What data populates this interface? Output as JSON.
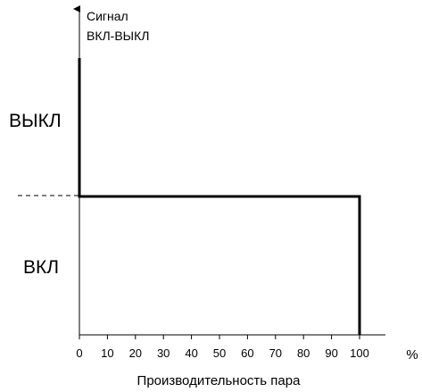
{
  "chart_data": {
    "type": "line",
    "ylabel_lines": [
      "Сигнал",
      "ВКЛ-ВЫКЛ"
    ],
    "xlabel": "Производительность пара",
    "x_unit": "%",
    "x_ticks": [
      0,
      10,
      20,
      30,
      40,
      50,
      60,
      70,
      80,
      90,
      100
    ],
    "xlim": [
      0,
      118
    ],
    "y_levels": {
      "off": "ВЫКЛ",
      "on": "ВКЛ"
    },
    "series": [
      {
        "points": [
          {
            "x": 0,
            "y": 1.0
          },
          {
            "x": 0,
            "y": 0.5
          },
          {
            "x": 100,
            "y": 0.5
          },
          {
            "x": 100,
            "y": 0
          }
        ]
      }
    ],
    "threshold_y": 0.5,
    "grid": false,
    "legend": "none"
  }
}
